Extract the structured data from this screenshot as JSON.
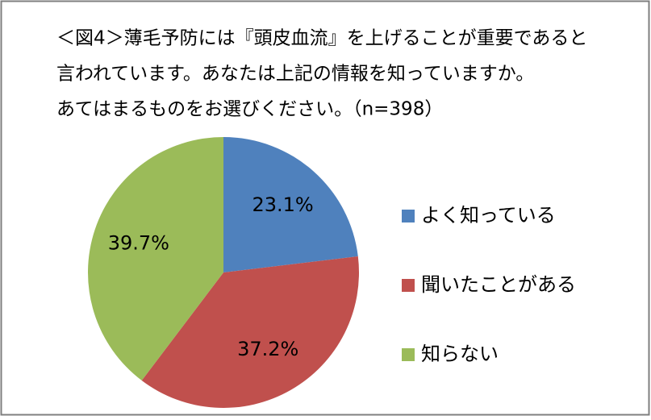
{
  "chart_data": {
    "type": "pie",
    "title": [
      "＜図4＞薄毛予防には『頭皮血流』を上げることが重要であると",
      "言われています。あなたは上記の情報を知っていますか。",
      "あてはまるものをお選びください。（n=398）"
    ],
    "categories": [
      "よく知っている",
      "聞いたことがある",
      "知らない"
    ],
    "values": [
      23.1,
      37.2,
      39.7
    ],
    "value_labels": [
      "23.1%",
      "37.2%",
      "39.7%"
    ],
    "colors": [
      "#4f81bd",
      "#c0504d",
      "#9bbb59"
    ],
    "legend": "right"
  }
}
